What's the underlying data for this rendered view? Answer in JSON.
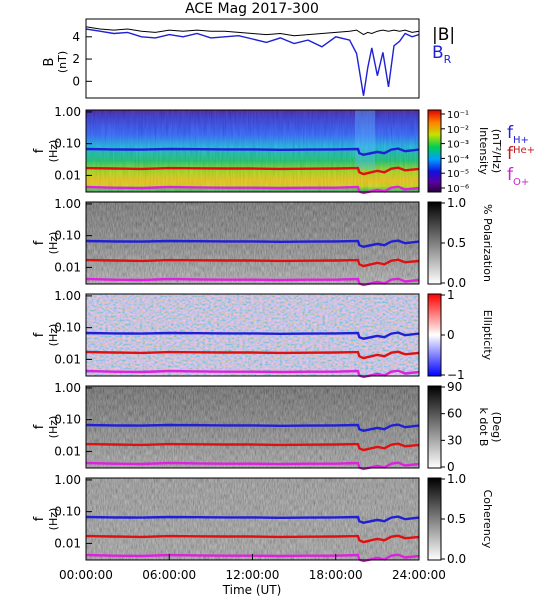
{
  "figure": {
    "title": "ACE Mag 2017-300",
    "xlabel": "Time (UT)",
    "x_ticks": [
      "00:00:00",
      "06:00:00",
      "12:00:00",
      "18:00:00",
      "24:00:00"
    ]
  },
  "chart_data": [
    {
      "type": "line",
      "panel": "magnetic-field",
      "ylabel_main": "B",
      "ylabel_unit": "(nT)",
      "y_ticks": [
        "4",
        "2",
        "0"
      ],
      "ylim": [
        -1.5,
        5.6
      ],
      "x_unit": "hours UT",
      "xlim": [
        0,
        24
      ],
      "legend": [
        {
          "label": "|B|",
          "color": "#000000"
        },
        {
          "label": "B",
          "sub": "R",
          "color": "#1f1fd6"
        }
      ],
      "series": [
        {
          "name": "|B|",
          "color": "#000000",
          "x": [
            0,
            1,
            2,
            3,
            4,
            5,
            6,
            7,
            8,
            9,
            10,
            11,
            12,
            13,
            14,
            15,
            16,
            17,
            18,
            19,
            19.5,
            20,
            20.3,
            20.6,
            21,
            21.4,
            21.8,
            22.2,
            22.6,
            23,
            23.5,
            24
          ],
          "y": [
            4.9,
            4.7,
            4.6,
            4.7,
            4.5,
            4.4,
            4.6,
            4.5,
            4.6,
            4.5,
            4.5,
            4.4,
            4.3,
            4.2,
            4.3,
            4.1,
            4.2,
            4.3,
            4.4,
            4.5,
            4.6,
            4.2,
            4.4,
            4.3,
            4.5,
            4.6,
            4.5,
            4.6,
            4.5,
            4.6,
            4.4,
            4.5
          ]
        },
        {
          "name": "B",
          "color": "#1f1fd6",
          "x": [
            0,
            1,
            2,
            3,
            4,
            5,
            6,
            7,
            8,
            9,
            10,
            11,
            12,
            13,
            14,
            15,
            16,
            17,
            18,
            19,
            19.5,
            20,
            20.3,
            20.6,
            21,
            21.4,
            21.8,
            22.2,
            22.6,
            23,
            23.5,
            24
          ],
          "y": [
            4.7,
            4.5,
            4.3,
            4.4,
            4.0,
            3.9,
            4.2,
            4.0,
            4.3,
            3.9,
            4.0,
            4.1,
            3.8,
            3.5,
            3.9,
            3.4,
            3.7,
            3.1,
            4.0,
            3.7,
            2.5,
            -1.3,
            1.2,
            3.0,
            0.5,
            2.6,
            -0.5,
            3.2,
            3.6,
            4.3,
            4.0,
            4.2
          ]
        }
      ]
    },
    {
      "type": "heatmap",
      "panel": "power-spectrum",
      "ylabel_main": "f",
      "ylabel_unit": "(Hz)",
      "y_ticks": [
        "1.00",
        "0.10",
        "0.01"
      ],
      "y_scale": "log",
      "ylim": [
        0.003,
        1.0
      ],
      "colorbar": {
        "type": "rainbow",
        "label": "Intensity",
        "unit": "(nT²/Hz)",
        "ticks": [
          "10⁻¹",
          "10⁻²",
          "10⁻³",
          "10⁻⁴",
          "10⁻⁵",
          "10⁻⁶"
        ]
      },
      "legend": [
        {
          "label": "f",
          "sub": "H+",
          "color": "#1f1fd6"
        },
        {
          "label": "f",
          "sub": "He+",
          "color": "#c51a1a"
        },
        {
          "label": "f",
          "sub": "O+",
          "color": "#cc22cc"
        }
      ]
    },
    {
      "type": "heatmap",
      "panel": "polarization",
      "ylabel_main": "f",
      "ylabel_unit": "(Hz)",
      "y_ticks": [
        "1.00",
        "0.10",
        "0.01"
      ],
      "y_scale": "log",
      "colorbar": {
        "type": "gray",
        "label": "% Polarization",
        "ticks": [
          "1.0",
          "0.5",
          "0.0"
        ]
      }
    },
    {
      "type": "heatmap",
      "panel": "ellipticity",
      "ylabel_main": "f",
      "ylabel_unit": "(Hz)",
      "y_ticks": [
        "1.00",
        "0.10",
        "0.01"
      ],
      "y_scale": "log",
      "colorbar": {
        "type": "bwr",
        "label": "Ellipticity",
        "ticks": [
          "1",
          "0",
          "−1"
        ]
      }
    },
    {
      "type": "heatmap",
      "panel": "wave-normal-angle",
      "ylabel_main": "f",
      "ylabel_unit": "(Hz)",
      "y_ticks": [
        "1.00",
        "0.10",
        "0.01"
      ],
      "y_scale": "log",
      "colorbar": {
        "type": "gray",
        "label": "k dot B",
        "unit": "(Deg)",
        "ticks": [
          "90",
          "60",
          "30",
          "0"
        ]
      }
    },
    {
      "type": "heatmap",
      "panel": "coherency",
      "ylabel_main": "f",
      "ylabel_unit": "(Hz)",
      "y_ticks": [
        "1.00",
        "0.10",
        "0.01"
      ],
      "y_scale": "log",
      "colorbar": {
        "type": "gray",
        "label": "Coherency",
        "ticks": [
          "1.0",
          "0.5",
          "0.0"
        ]
      }
    }
  ],
  "gyrofrequency_lines": {
    "x_unit": "hours UT",
    "x": [
      0,
      2,
      4,
      6,
      8,
      10,
      12,
      14,
      16,
      18,
      19.6,
      19.7,
      20,
      21,
      21.5,
      22,
      22.5,
      23,
      24
    ],
    "H+": [
      0.068,
      0.066,
      0.065,
      0.068,
      0.067,
      0.066,
      0.066,
      0.064,
      0.065,
      0.066,
      0.068,
      0.05,
      0.045,
      0.055,
      0.05,
      0.065,
      0.07,
      0.058,
      0.065
    ],
    "He+": [
      0.017,
      0.0165,
      0.016,
      0.017,
      0.0168,
      0.0165,
      0.0165,
      0.016,
      0.0163,
      0.0165,
      0.017,
      0.0125,
      0.011,
      0.014,
      0.0125,
      0.0163,
      0.0175,
      0.0145,
      0.016
    ],
    "O+": [
      0.0043,
      0.0041,
      0.004,
      0.0043,
      0.0042,
      0.0041,
      0.0041,
      0.004,
      0.0041,
      0.0041,
      0.0043,
      0.0031,
      0.0028,
      0.0035,
      0.0031,
      0.0041,
      0.0044,
      0.0036,
      0.004
    ]
  }
}
